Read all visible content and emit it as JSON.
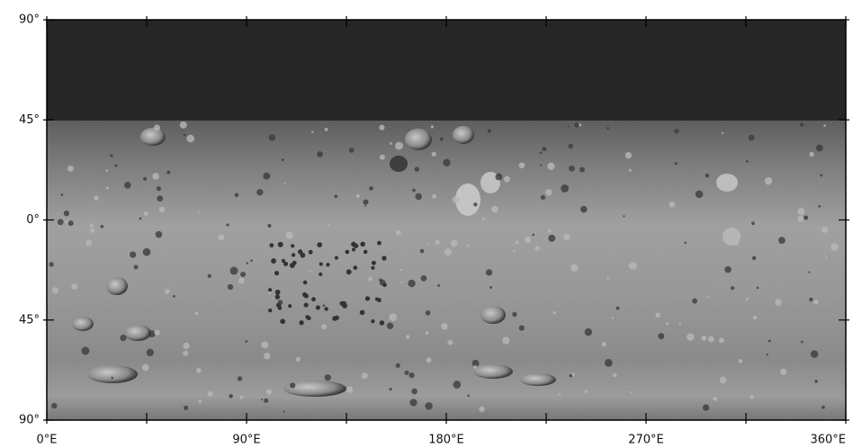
{
  "map": {
    "x_tick_labels": [
      "0°E",
      "90°E",
      "180°E",
      "270°E",
      "360°E"
    ],
    "y_tick_labels": [
      "90°",
      "45°",
      "0°",
      "45°",
      "90°"
    ]
  }
}
